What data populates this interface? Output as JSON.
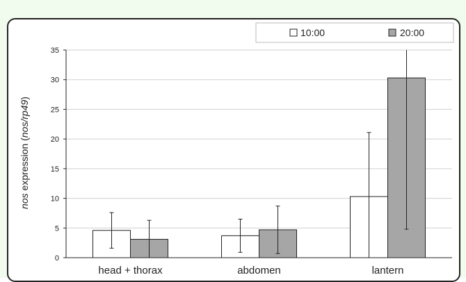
{
  "chart_data": {
    "type": "bar",
    "title": "",
    "xlabel": "",
    "ylabel_prefix": "nos",
    "ylabel_middle": " expression (",
    "ylabel_italic": "nos/rp49",
    "ylabel_suffix": ")",
    "categories": [
      "head + thorax",
      "abdomen",
      "lantern"
    ],
    "series": [
      {
        "name": "10:00",
        "values": [
          4.6,
          3.7,
          10.3
        ],
        "error": [
          3.0,
          2.8,
          10.8
        ],
        "color": "#ffffff"
      },
      {
        "name": "20:00",
        "values": [
          3.1,
          4.7,
          30.3
        ],
        "error": [
          3.2,
          4.0,
          25.5
        ],
        "color": "#a6a6a6"
      }
    ],
    "ylim": [
      0,
      35
    ],
    "yticks": [
      0,
      5,
      10,
      15,
      20,
      25,
      30,
      35
    ],
    "grid": true,
    "legend_position": "top-right"
  }
}
